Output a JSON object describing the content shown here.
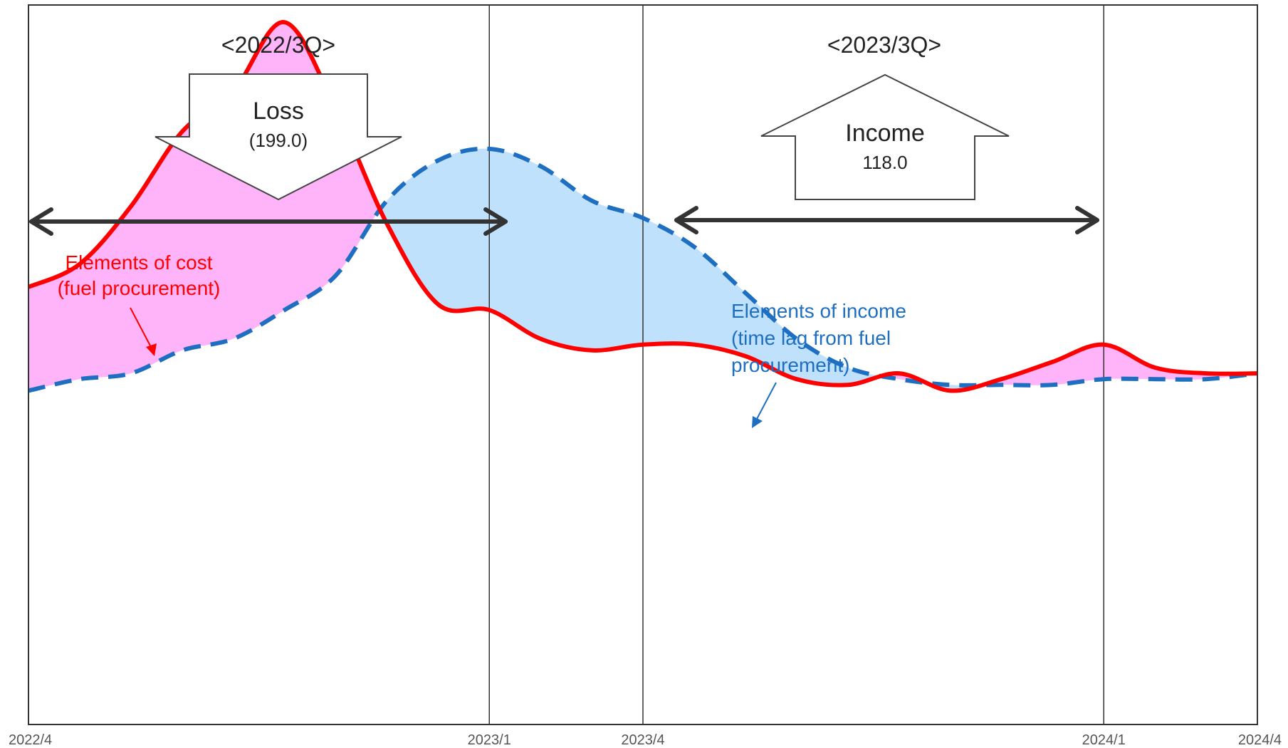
{
  "chart_data": {
    "type": "area",
    "x_ticks": [
      "2022/4",
      "2023/1",
      "2023/4",
      "2024/1",
      "2024/4"
    ],
    "series": [
      {
        "name": "Elements of cost (fuel procurement)",
        "color": "#ff0000",
        "line_style": "solid",
        "fill_color": "#ffb3f8",
        "x": [
          "2022/4",
          "2022/5",
          "2022/6",
          "2022/7",
          "2022/8",
          "2022/9",
          "2022/10",
          "2022/11",
          "2022/12",
          "2023/1",
          "2023/2",
          "2023/3",
          "2023/4",
          "2023/5",
          "2023/6",
          "2023/7",
          "2023/8",
          "2023/9",
          "2023/10",
          "2023/11",
          "2023/12",
          "2024/1",
          "2024/2",
          "2024/3",
          "2024/4"
        ],
        "values": [
          51,
          55,
          65,
          78,
          85,
          97,
          82,
          62,
          48,
          47,
          42,
          40,
          41,
          41,
          39,
          35,
          34,
          36,
          33,
          35,
          38,
          41,
          37,
          36,
          36
        ]
      },
      {
        "name": "Elements of income (time lag from fuel procurement)",
        "color": "#1e6fc1",
        "line_style": "dashed",
        "fill_color": "#bfe1fc",
        "x": [
          "2022/4",
          "2022/5",
          "2022/6",
          "2022/7",
          "2022/8",
          "2022/9",
          "2022/10",
          "2022/11",
          "2022/12",
          "2023/1",
          "2023/2",
          "2023/3",
          "2023/4",
          "2023/5",
          "2023/6",
          "2023/7",
          "2023/8",
          "2023/9",
          "2023/10",
          "2023/11",
          "2023/12",
          "2024/1",
          "2024/2",
          "2024/3",
          "2024/4"
        ],
        "values": [
          33,
          35,
          36,
          40,
          42,
          47,
          53,
          66,
          73,
          75,
          72,
          66,
          63,
          58,
          50,
          42,
          37,
          35,
          34,
          34,
          34,
          35,
          35,
          35,
          36
        ]
      }
    ],
    "ylim": [
      -25,
      100
    ],
    "grid": false,
    "period_markers": [
      "2023/1",
      "2023/4",
      "2024/1"
    ],
    "periods": [
      {
        "label": "<2022/3Q>",
        "from": "2022/4",
        "to": "2023/1",
        "arrow": "down",
        "title": "Loss",
        "value": "(199.0)"
      },
      {
        "label": "<2023/3Q>",
        "from": "2023/4",
        "to": "2024/1",
        "arrow": "up",
        "title": "Income",
        "value": "118.0"
      }
    ],
    "annotations": {
      "cost": [
        "Elements of cost",
        "(fuel procurement)"
      ],
      "income": [
        "Elements of income",
        "(time lag from fuel",
        "procurement)"
      ]
    }
  }
}
